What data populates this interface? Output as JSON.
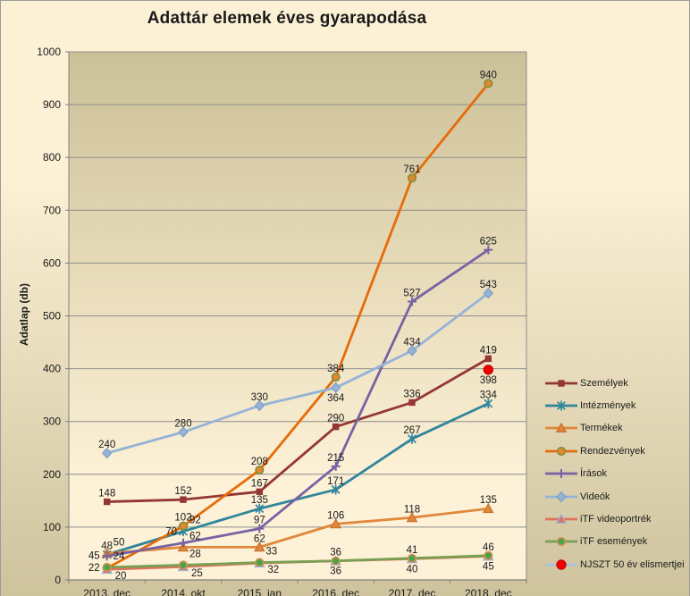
{
  "chart_data": {
    "type": "line",
    "title": "Adattár elemek éves gyarapodása",
    "ylabel": "Adatlap (db)",
    "ylim": [
      0,
      1000
    ],
    "ytick_step": 100,
    "grid": true,
    "legend_position": "right",
    "categories": [
      "2013. dec",
      "2014. okt",
      "2015. jan",
      "2016. dec",
      "2017. dec",
      "2018. dec"
    ],
    "series": [
      {
        "name": "Személyek",
        "marker": "square",
        "color": "#943634",
        "marker_fill": "#943634",
        "marker_stroke": "#7a2c2a",
        "values": [
          148,
          152,
          167,
          290,
          336,
          419
        ],
        "label_pos": [
          "above",
          "above",
          "above",
          "above",
          "above",
          "above"
        ]
      },
      {
        "name": "Intézmények",
        "marker": "asterisk",
        "color": "#31859C",
        "marker_fill": "none",
        "marker_stroke": "#31859C",
        "values": [
          48,
          92,
          135,
          171,
          267,
          334
        ],
        "label_pos": [
          "above",
          "above-right",
          "above",
          "above",
          "above",
          "above"
        ]
      },
      {
        "name": "Termékek",
        "marker": "triangle",
        "color": "#E0883B",
        "marker_fill": "#E0883B",
        "marker_stroke": "#c9722c",
        "values": [
          50,
          62,
          62,
          106,
          118,
          135
        ],
        "label_pos": [
          "above-right",
          "above-right",
          "above",
          "above",
          "above",
          "above"
        ]
      },
      {
        "name": "Rendezvények",
        "marker": "circle",
        "color": "#E66C0A",
        "marker_fill": "#E8872B",
        "marker_stroke": "#7E8F3C",
        "values": [
          22,
          102,
          208,
          384,
          761,
          940
        ],
        "label_pos": [
          "left",
          "above",
          "above",
          "above",
          "above",
          "above"
        ]
      },
      {
        "name": "Írások",
        "marker": "plus",
        "color": "#7763A3",
        "marker_fill": "none",
        "marker_stroke": "#7763A3",
        "values": [
          45,
          70,
          97,
          215,
          527,
          625
        ],
        "label_pos": [
          "left",
          "above-left",
          "above",
          "above",
          "above",
          "above"
        ]
      },
      {
        "name": "Videók",
        "marker": "diamond",
        "color": "#95B3D7",
        "marker_fill": "#95B3D7",
        "marker_stroke": "#7a9bc4",
        "values": [
          240,
          280,
          330,
          364,
          434,
          543
        ],
        "label_pos": [
          "above",
          "above",
          "above",
          "below",
          "above",
          "above"
        ]
      },
      {
        "name": "iTF videoportrék",
        "marker": "triangle",
        "color": "#E0715C",
        "marker_fill": "#E0715C",
        "marker_stroke": "#95B3D7",
        "values": [
          20,
          25,
          32,
          36,
          40,
          45
        ],
        "label_pos": [
          "below-right",
          "below-right",
          "below-right",
          "below",
          "below",
          "below"
        ]
      },
      {
        "name": "iTF események",
        "marker": "circle",
        "color": "#77A053",
        "marker_fill": "#46A546",
        "marker_stroke": "#CE8E54",
        "values": [
          24,
          28,
          33,
          36,
          41,
          46
        ],
        "label_pos": [
          "above-right",
          "above-right",
          "above-right",
          "above",
          "above",
          "above"
        ]
      },
      {
        "name": "NJSZT 50 év elismertjei",
        "marker": "dot",
        "color": "#A9C1DD",
        "marker_fill": "#EE0000",
        "marker_stroke": "#C00000",
        "values": [
          null,
          null,
          null,
          null,
          null,
          398
        ],
        "label_pos": [
          null,
          null,
          null,
          null,
          null,
          "below"
        ]
      }
    ],
    "colors": {
      "outer_bg_top": "#FCF0D5",
      "outer_bg_bottom": "#CEC39D",
      "plot_bg_top": "#CBC097",
      "plot_bg_mid": "#E9DDBC",
      "plot_bg_bottom": "#FDF1D7",
      "grid": "#8C8C8C",
      "axis": "#7F7F7F",
      "text": "#1A1A1A"
    }
  }
}
